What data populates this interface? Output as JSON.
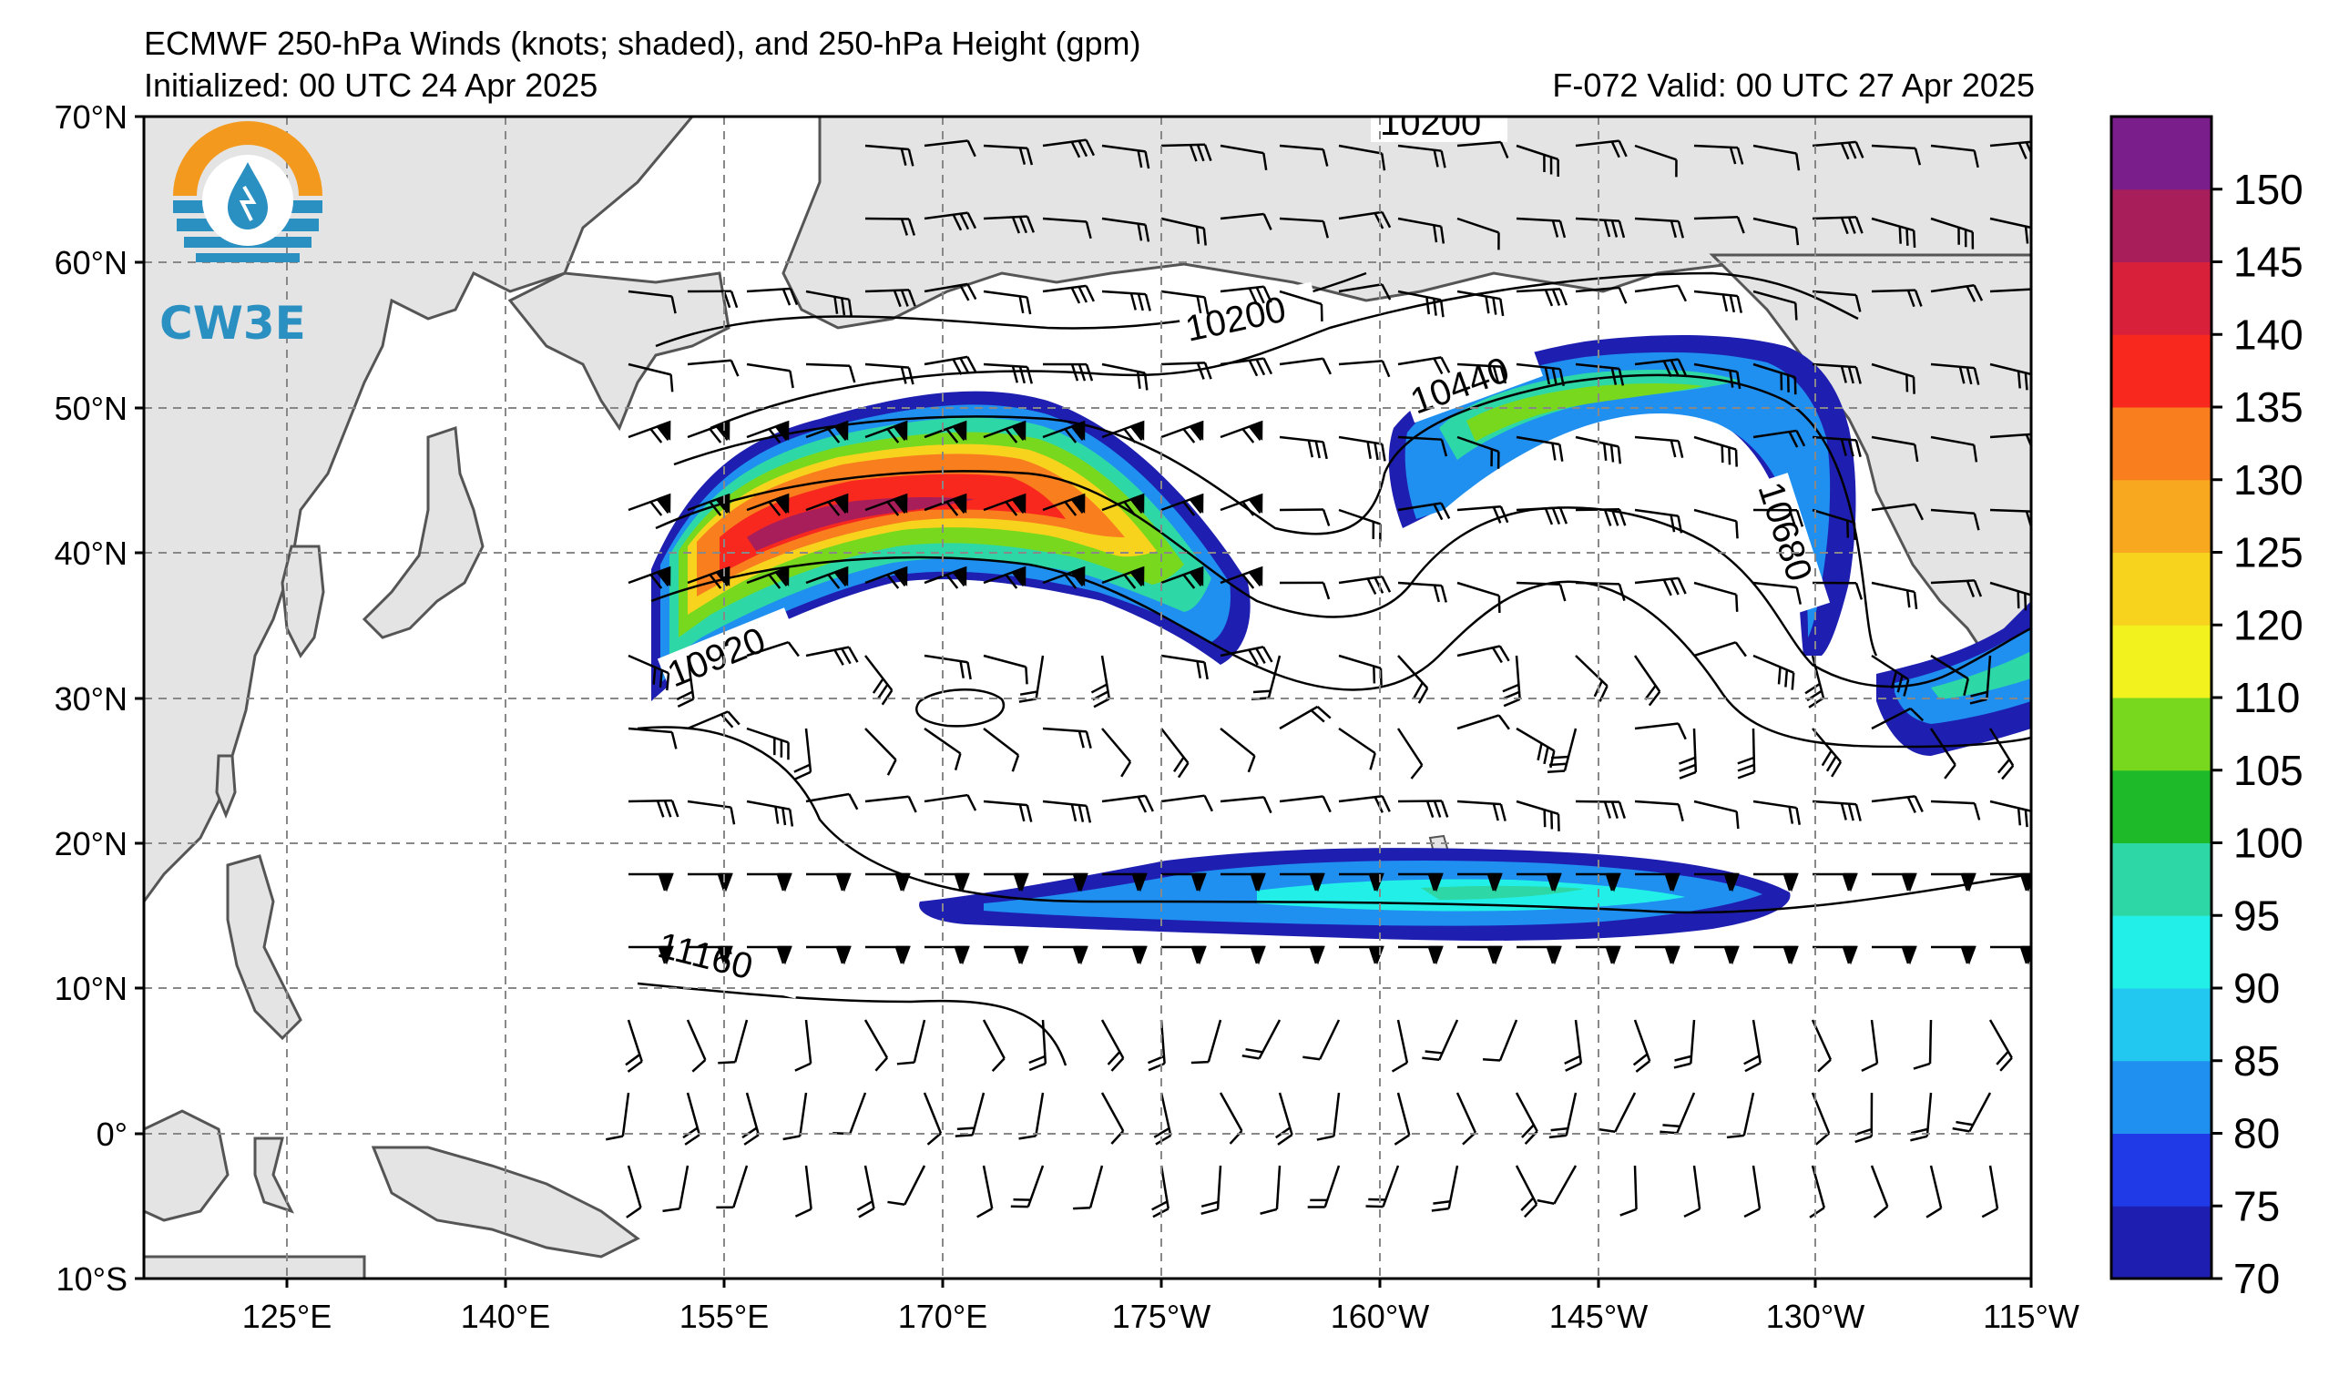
{
  "header": {
    "title": "ECMWF 250-hPa Winds (knots; shaded), and 250-hPa Height (gpm)",
    "initialized": "Initialized: 00 UTC 24 Apr 2025",
    "valid": "F-072  Valid: 00 UTC 27 Apr 2025"
  },
  "logo": {
    "text": "CW3E",
    "colors": {
      "orange": "#f39a1e",
      "blue": "#2a8fc1"
    }
  },
  "map": {
    "lat_labels": [
      "70°N",
      "60°N",
      "50°N",
      "40°N",
      "30°N",
      "20°N",
      "10°N",
      "0°",
      "10°S"
    ],
    "lon_labels": [
      "125°E",
      "140°E",
      "155°E",
      "170°E",
      "175°W",
      "160°W",
      "145°W",
      "130°W",
      "115°W"
    ],
    "contour_labels": [
      "10200",
      "10200",
      "10440",
      "10680",
      "10920",
      "11160"
    ],
    "land_color": "#e4e4e4",
    "coast_color": "#555555"
  },
  "colorbar": {
    "labels": [
      "150",
      "145",
      "140",
      "135",
      "130",
      "125",
      "120",
      "110",
      "105",
      "100",
      "95",
      "90",
      "85",
      "80",
      "75",
      "70"
    ],
    "colors": [
      "#1e1fb0",
      "#1f3ae6",
      "#1f8ff0",
      "#22c8f0",
      "#22f0e8",
      "#2ed8a6",
      "#1fba2a",
      "#78d81e",
      "#f2f21e",
      "#f8d31e",
      "#f8a81e",
      "#f87e1e",
      "#f8281e",
      "#d8203a",
      "#a81e5a",
      "#7a1e8c"
    ]
  }
}
